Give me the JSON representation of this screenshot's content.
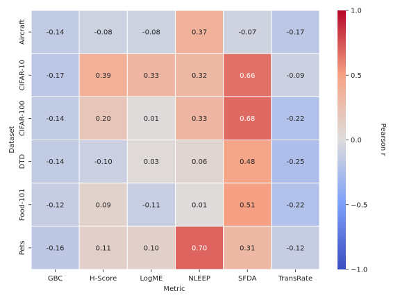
{
  "chart_data": {
    "type": "heatmap",
    "xlabel": "Metric",
    "ylabel": "Dataset",
    "colorbar_label": "Pearson r",
    "x_categories": [
      "GBC",
      "H-Score",
      "LogME",
      "NLEEP",
      "SFDA",
      "TransRate"
    ],
    "y_categories": [
      "Aircraft",
      "CIFAR-10",
      "CIFAR-100",
      "DTD",
      "Food-101",
      "Pets"
    ],
    "values": [
      [
        -0.14,
        -0.08,
        -0.08,
        0.37,
        -0.07,
        -0.17
      ],
      [
        -0.17,
        0.39,
        0.33,
        0.32,
        0.66,
        -0.09
      ],
      [
        -0.14,
        0.2,
        0.01,
        0.33,
        0.68,
        -0.22
      ],
      [
        -0.14,
        -0.1,
        0.03,
        0.06,
        0.48,
        -0.25
      ],
      [
        -0.12,
        0.09,
        -0.11,
        0.01,
        0.51,
        -0.22
      ],
      [
        -0.16,
        0.11,
        0.1,
        0.7,
        0.31,
        -0.12
      ]
    ],
    "value_labels": [
      [
        "-0.14",
        "-0.08",
        "-0.08",
        "0.37",
        "-0.07",
        "-0.17"
      ],
      [
        "-0.17",
        "0.39",
        "0.33",
        "0.32",
        "0.66",
        "-0.09"
      ],
      [
        "-0.14",
        "0.20",
        "0.01",
        "0.33",
        "0.68",
        "-0.22"
      ],
      [
        "-0.14",
        "-0.10",
        "0.03",
        "0.06",
        "0.48",
        "-0.25"
      ],
      [
        "-0.12",
        "0.09",
        "-0.11",
        "0.01",
        "0.51",
        "-0.22"
      ],
      [
        "-0.16",
        "0.11",
        "0.10",
        "0.70",
        "0.31",
        "-0.12"
      ]
    ],
    "colormap": "coolwarm",
    "vmin": -1.0,
    "vmax": 1.0,
    "colorbar_ticks": [
      1.0,
      0.5,
      0.0,
      -0.5,
      -1.0
    ],
    "colorbar_tick_labels": [
      "1.0",
      "0.5",
      "0.0",
      "−0.5",
      "−1.0"
    ]
  }
}
